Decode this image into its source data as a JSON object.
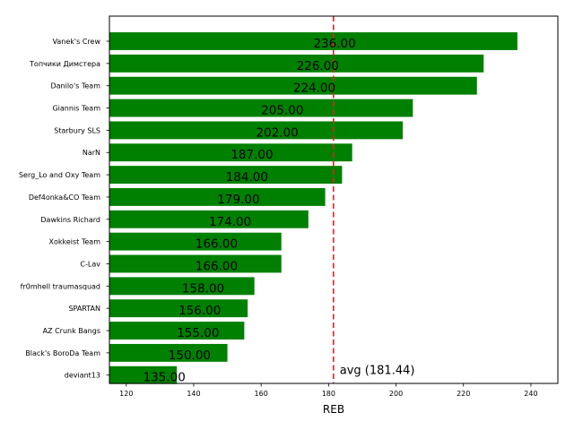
{
  "chart_data": {
    "type": "bar",
    "orientation": "horizontal",
    "categories": [
      "Vanek's Crew",
      "Топчики Димстера",
      "Danilo's Team",
      "Giannis Team",
      "Starbury SLS",
      "NarN",
      "Serg_Lo and Oxy Team",
      "Def4onka&CO Team",
      "Dawkins Richard",
      "Xokkeist Team",
      "C-Lav",
      "fr0mhell traumasquad",
      "SPARTAN",
      "AZ Crunk Bangs",
      "Black's BoroDa Team",
      "deviant13"
    ],
    "values": [
      236,
      226,
      224,
      205,
      202,
      187,
      184,
      179,
      174,
      166,
      166,
      158,
      156,
      155,
      150,
      135
    ],
    "value_labels": [
      "236.00",
      "226.00",
      "224.00",
      "205.00",
      "202.00",
      "187.00",
      "184.00",
      "179.00",
      "174.00",
      "166.00",
      "166.00",
      "158.00",
      "156.00",
      "155.00",
      "150.00",
      "135.00"
    ],
    "xlabel": "REB",
    "ylabel": "",
    "title": "",
    "xlim": [
      115,
      248
    ],
    "xticks": [
      120,
      140,
      160,
      180,
      200,
      220,
      240
    ],
    "xtick_labels": [
      "120",
      "140",
      "160",
      "180",
      "200",
      "220",
      "240"
    ],
    "average": 181.44,
    "average_label": "avg (181.44)",
    "bar_color": "#008000",
    "average_line_color": "#d62728",
    "grid": false,
    "legend": "none"
  }
}
